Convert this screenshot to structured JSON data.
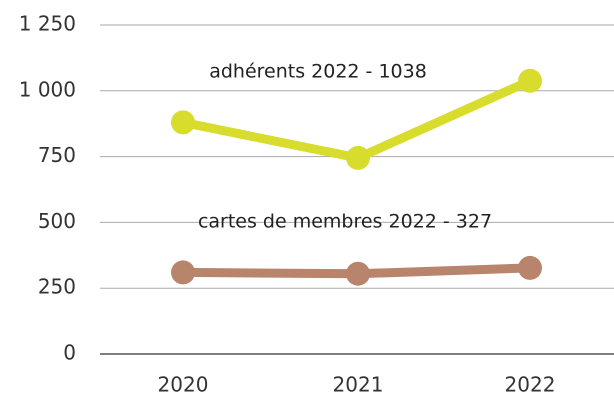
{
  "chart_data": {
    "type": "line",
    "categories": [
      "2020",
      "2021",
      "2022"
    ],
    "series": [
      {
        "color": "#d8dc2c",
        "values": [
          880,
          745,
          1038
        ]
      },
      {
        "color": "#b8846c",
        "values": [
          310,
          305,
          327
        ]
      }
    ],
    "annotations": [
      "adhérents 2022  - 1038",
      "cartes de membres 2022 - 327"
    ],
    "ylim": [
      0,
      1250
    ],
    "yticks": [
      0,
      {
        "value": 250,
        "label": "250"
      },
      500,
      750,
      {
        "value": 1000,
        "label": "1 000"
      },
      {
        "value": 1250,
        "label": "1 250"
      }
    ],
    "grid": true
  }
}
